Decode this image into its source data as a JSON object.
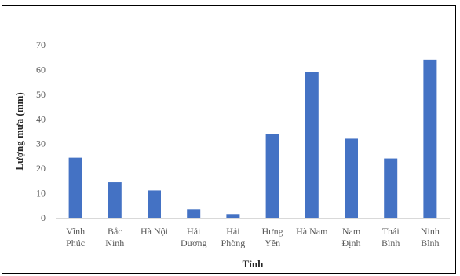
{
  "chart_data": {
    "type": "bar",
    "categories": [
      [
        "Vĩnh",
        "Phúc"
      ],
      [
        "Bắc",
        "Ninh"
      ],
      [
        "Hà Nội"
      ],
      [
        "Hải",
        "Dương"
      ],
      [
        "Hải",
        "Phòng"
      ],
      [
        "Hưng",
        "Yên"
      ],
      [
        "Hà Nam"
      ],
      [
        "Nam",
        "Định"
      ],
      [
        "Thái",
        "Bình"
      ],
      [
        "Ninh",
        "Bình"
      ]
    ],
    "values": [
      24.3,
      14.3,
      11,
      3.4,
      1.5,
      34,
      59,
      32,
      24,
      64
    ],
    "xlabel": "Tỉnh",
    "ylabel": "Lượng mưa (mm)",
    "ylim": [
      0,
      70
    ],
    "yticks": [
      "0",
      "10",
      "20",
      "30",
      "40",
      "50",
      "60",
      "70"
    ],
    "grid": false,
    "bar_color": "#4472C4",
    "axis_color": "#D9D9D9"
  }
}
